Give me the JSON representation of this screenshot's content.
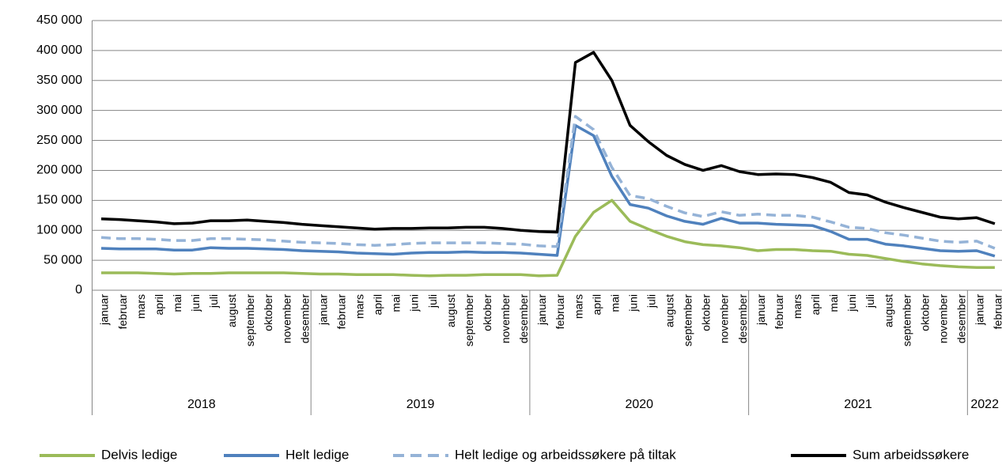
{
  "chart_data": {
    "type": "line",
    "categories": [
      "januar",
      "februar",
      "mars",
      "april",
      "mai",
      "juni",
      "juli",
      "august",
      "september",
      "oktober",
      "november",
      "desember",
      "januar",
      "februar",
      "mars",
      "april",
      "mai",
      "juni",
      "juli",
      "august",
      "september",
      "oktober",
      "november",
      "desember",
      "januar",
      "februar",
      "mars",
      "april",
      "mai",
      "juni",
      "juli",
      "august",
      "september",
      "oktober",
      "november",
      "desember",
      "januar",
      "februar",
      "mars",
      "april",
      "mai",
      "juni",
      "juli",
      "august",
      "september",
      "oktober",
      "november",
      "desember",
      "januar",
      "februar"
    ],
    "years": [
      "2018",
      "2019",
      "2020",
      "2021",
      "2022"
    ],
    "ylim": [
      0,
      450000
    ],
    "yticks": [
      {
        "value": 0,
        "label": "0"
      },
      {
        "value": 50000,
        "label": "50 000"
      },
      {
        "value": 100000,
        "label": "100 000"
      },
      {
        "value": 150000,
        "label": "150 000"
      },
      {
        "value": 200000,
        "label": "200 000"
      },
      {
        "value": 250000,
        "label": "250 000"
      },
      {
        "value": 300000,
        "label": "300 000"
      },
      {
        "value": 350000,
        "label": "350 000"
      },
      {
        "value": 400000,
        "label": "400 000"
      },
      {
        "value": 450000,
        "label": "450 000"
      }
    ],
    "grid": true,
    "legend": "bottom",
    "series": [
      {
        "name": "Delvis ledige",
        "color": "#9bbb59",
        "dashed": false,
        "values": [
          29000,
          29000,
          29000,
          28000,
          27000,
          28000,
          28000,
          29000,
          29000,
          29000,
          29000,
          28000,
          27000,
          27000,
          26000,
          26000,
          26000,
          25000,
          24000,
          25000,
          25000,
          26000,
          26000,
          26000,
          24000,
          25000,
          90000,
          130000,
          150000,
          115000,
          102000,
          90000,
          81000,
          76000,
          74000,
          71000,
          66000,
          68000,
          68000,
          66000,
          65000,
          60000,
          58000,
          53000,
          48000,
          44000,
          41000,
          39000,
          38000,
          38000
        ]
      },
      {
        "name": "Helt ledige",
        "color": "#4f81bd",
        "dashed": false,
        "values": [
          70000,
          69000,
          69000,
          69000,
          67000,
          67000,
          71000,
          70000,
          70000,
          69000,
          68000,
          66000,
          65000,
          64000,
          62000,
          61000,
          60000,
          62000,
          63000,
          63000,
          64000,
          63000,
          63000,
          62000,
          60000,
          58000,
          275000,
          258000,
          190000,
          143000,
          137000,
          124000,
          115000,
          110000,
          120000,
          112000,
          112000,
          110000,
          109000,
          108000,
          98000,
          85000,
          85000,
          77000,
          74000,
          70000,
          66000,
          65000,
          66000,
          57000
        ]
      },
      {
        "name": "Helt ledige og arbeidssøkere på tiltak",
        "color": "#95b3d7",
        "dashed": true,
        "values": [
          88000,
          86000,
          86000,
          85000,
          83000,
          83000,
          86000,
          86000,
          85000,
          84000,
          82000,
          80000,
          79000,
          78000,
          76000,
          75000,
          76000,
          78000,
          79000,
          79000,
          79000,
          79000,
          78000,
          77000,
          74000,
          73000,
          290000,
          268000,
          205000,
          158000,
          153000,
          140000,
          129000,
          123000,
          131000,
          125000,
          127000,
          125000,
          125000,
          122000,
          114000,
          105000,
          103000,
          96000,
          92000,
          87000,
          82000,
          80000,
          82000,
          70000
        ]
      },
      {
        "name": "Sum arbeidssøkere",
        "color": "#000000",
        "dashed": false,
        "values": [
          119000,
          118000,
          116000,
          114000,
          111000,
          112000,
          116000,
          116000,
          117000,
          115000,
          113000,
          110000,
          108000,
          106000,
          104000,
          102000,
          103000,
          103000,
          104000,
          104000,
          105000,
          105000,
          103000,
          100000,
          98000,
          97000,
          380000,
          397000,
          350000,
          275000,
          248000,
          225000,
          210000,
          200000,
          208000,
          198000,
          193000,
          194000,
          193000,
          188000,
          180000,
          163000,
          159000,
          147000,
          138000,
          130000,
          122000,
          119000,
          121000,
          111000
        ]
      }
    ]
  }
}
